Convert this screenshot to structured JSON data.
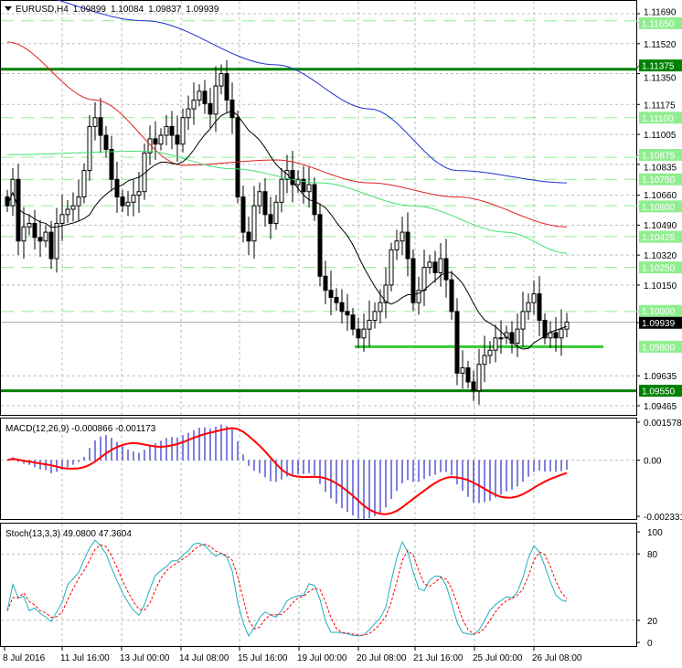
{
  "header": {
    "symbol": "EURUSD,H4",
    "open": "1.09899",
    "high": "1.10084",
    "low": "1.09837",
    "close": "1.09939"
  },
  "macd_label": "MACD(12,26,9) -0.000866 -0.001173",
  "stoch_label": "Stoch(13,3,3) 49.0800 47.3604",
  "colors": {
    "bull": "#ffffff",
    "bear": "#000000",
    "sma_fast": "#000000",
    "sma_green": "#40e070",
    "sma_red": "#e02020",
    "sma_blue": "#2030d0",
    "level_dark": "#008000",
    "level_light": "#90ee90",
    "macd_hist": "#0000c0",
    "macd_signal": "#ff0000",
    "stoch_main": "#20b0c0",
    "stoch_signal": "#ff0000"
  },
  "chart_data": {
    "type": "candlestick",
    "price_range": [
      1.09465,
      1.1169
    ],
    "price_ticks": [
      "1.11690",
      "1.11520",
      "1.11350",
      "1.11175",
      "1.11005",
      "1.10835",
      "1.10660",
      "1.10490",
      "1.10320",
      "1.10150",
      "1.09635",
      "1.09465"
    ],
    "time_labels": [
      "8 Jul 2016",
      "11 Jul 16:00",
      "13 Jul 00:00",
      "14 Jul 08:00",
      "15 Jul 16:00",
      "19 Jul 00:00",
      "20 Jul 08:00",
      "21 Jul 16:00",
      "25 Jul 00:00",
      "26 Jul 08:00"
    ],
    "closes": [
      1.106,
      1.1075,
      1.104,
      1.1048,
      1.105,
      1.1042,
      1.104,
      1.1045,
      1.103,
      1.105,
      1.1055,
      1.1058,
      1.106,
      1.1065,
      1.108,
      1.1105,
      1.111,
      1.11,
      1.1092,
      1.1075,
      1.1065,
      1.106,
      1.1062,
      1.1066,
      1.1068,
      1.109,
      1.1098,
      1.1095,
      1.11,
      1.1105,
      1.11,
      1.1095,
      1.111,
      1.1115,
      1.112,
      1.1125,
      1.1118,
      1.1112,
      1.1128,
      1.1135,
      1.112,
      1.111,
      1.1065,
      1.1045,
      1.104,
      1.106,
      1.1068,
      1.1055,
      1.105,
      1.1062,
      1.1075,
      1.108,
      1.1072,
      1.1075,
      1.1068,
      1.1072,
      1.1055,
      1.102,
      1.1012,
      1.1008,
      1.1005,
      1.1,
      1.0998,
      1.099,
      1.0985,
      1.099,
      1.0995,
      1.1,
      1.1005,
      1.1015,
      1.1035,
      1.104,
      1.1045,
      1.103,
      1.1005,
      1.1012,
      1.1025,
      1.1028,
      1.1022,
      1.103,
      1.1018,
      1.1,
      1.0965,
      1.0968,
      1.096,
      1.0955,
      1.097,
      1.0975,
      1.0978,
      1.0985,
      1.0985,
      1.0988,
      1.0982,
      1.099,
      1.1,
      1.1005,
      1.101,
      1.0995,
      1.0985,
      1.0988,
      1.0985,
      1.099,
      1.0994
    ],
    "ma_green": [
      [
        0,
        1.1089
      ],
      [
        25,
        1.1091
      ],
      [
        41,
        1.1081
      ],
      [
        57,
        1.1073
      ],
      [
        74,
        1.106
      ],
      [
        91,
        1.1045
      ],
      [
        102,
        1.1033
      ]
    ],
    "ma_red": [
      [
        0,
        1.1153
      ],
      [
        16,
        1.112
      ],
      [
        32,
        1.1083
      ],
      [
        49,
        1.1086
      ],
      [
        66,
        1.1073
      ],
      [
        82,
        1.1065
      ],
      [
        102,
        1.1048
      ]
    ],
    "ma_blue": [
      [
        0,
        1.1182
      ],
      [
        25,
        1.1165
      ],
      [
        49,
        1.114
      ],
      [
        66,
        1.1115
      ],
      [
        82,
        1.108
      ],
      [
        102,
        1.1073
      ]
    ],
    "levels": [
      {
        "price": 1.1165,
        "label": "1.11650",
        "style": "light"
      },
      {
        "price": 1.11375,
        "label": "1.11375",
        "style": "dark"
      },
      {
        "price": 1.111,
        "label": "1.11100",
        "style": "light"
      },
      {
        "price": 1.10875,
        "label": "1.10875",
        "style": "light"
      },
      {
        "price": 1.1075,
        "label": "1.10750",
        "style": "light"
      },
      {
        "price": 1.106,
        "label": "1.10600",
        "style": "light"
      },
      {
        "price": 1.10425,
        "label": "1.10425",
        "style": "light"
      },
      {
        "price": 1.1025,
        "label": "1.10250",
        "style": "light"
      },
      {
        "price": 1.1,
        "label": "1.10000",
        "style": "light"
      },
      {
        "price": 1.098,
        "label": "1.09800",
        "style": "light-segment"
      },
      {
        "price": 1.0955,
        "label": "1.09550",
        "style": "dark"
      }
    ],
    "current_price": {
      "price": 1.09939,
      "label": "1.09939"
    },
    "macd_ticks": [
      "0.001578",
      "0.00",
      "-0.002331"
    ],
    "macd_range": [
      -0.002331,
      0.001578
    ],
    "stoch_ticks": [
      "100",
      "80",
      "20",
      "0"
    ]
  }
}
